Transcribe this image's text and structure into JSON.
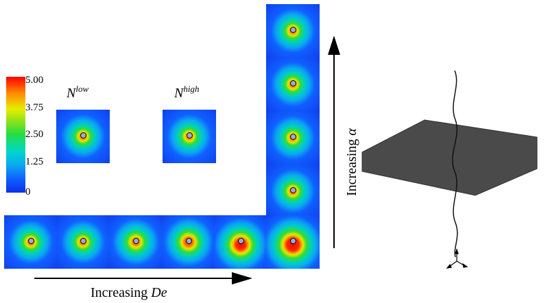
{
  "colorbar": {
    "ticks": [
      "5.00",
      "3.75",
      "2.50",
      "1.25",
      "0"
    ]
  },
  "labels": {
    "n_low_base": "N",
    "n_low_sup": "low",
    "n_high_base": "N",
    "n_high_sup": "high"
  },
  "axes": {
    "horizontal_prefix": "Increasing ",
    "horizontal_symbol": "De",
    "vertical_prefix": "Increasing ",
    "vertical_symbol": "α"
  },
  "colors": {
    "background": "#ffffff",
    "slab": "#4a4a4a",
    "field_high": "#ff2a00",
    "field_low": "#1040ee"
  },
  "icons": [
    "axis-triad-icon"
  ]
}
